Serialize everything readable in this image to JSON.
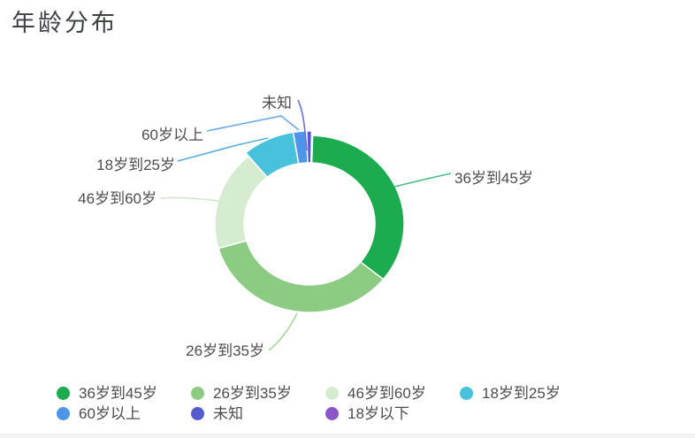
{
  "chart_data": {
    "type": "pie",
    "subtype": "donut",
    "title": "年龄分布",
    "legend_position": "bottom-left",
    "labels_shown_as": "callout-lines",
    "value_unit": "percent (estimated from arc angles; no numeric labels shown)",
    "start_angle_deg": 2,
    "segments": [
      {
        "key": "36-45",
        "label": "36岁到45岁",
        "value_pct": 35.2,
        "color": "#1cab4f",
        "leader_line_color": "#4dbd85",
        "emphasized": false
      },
      {
        "key": "26-35",
        "label": "26岁到35岁",
        "value_pct": 34.8,
        "color": "#8ccb82",
        "leader_line_color": "#a6d89c",
        "emphasized": false
      },
      {
        "key": "46-60",
        "label": "46岁到60岁",
        "value_pct": 18.3,
        "color": "#d6ecd0",
        "leader_line_color": "#d0e7cc",
        "emphasized": false
      },
      {
        "key": "18-25",
        "label": "18岁到25岁",
        "value_pct": 8.5,
        "color": "#48c1dd",
        "leader_line_color": "#57aede",
        "emphasized": true
      },
      {
        "key": "60-plus",
        "label": "60岁以上",
        "value_pct": 2.2,
        "color": "#4e94e8",
        "leader_line_color": "#6ba9ea",
        "emphasized": true
      },
      {
        "key": "unknown",
        "label": "未知",
        "value_pct": 0.8,
        "color": "#555bce",
        "leader_line_color": "#6a72d8",
        "emphasized": true
      },
      {
        "key": "under-18",
        "label": "18岁以下",
        "value_pct": 0.2,
        "color": "#8a56c8",
        "leader_line_color": "#8a56c8",
        "emphasized": false
      }
    ],
    "colors": {
      "background": "#ffffff",
      "title_text": "#3d4045",
      "label_text": "#4c4c50",
      "legend_text": "#4c4c4c"
    }
  }
}
